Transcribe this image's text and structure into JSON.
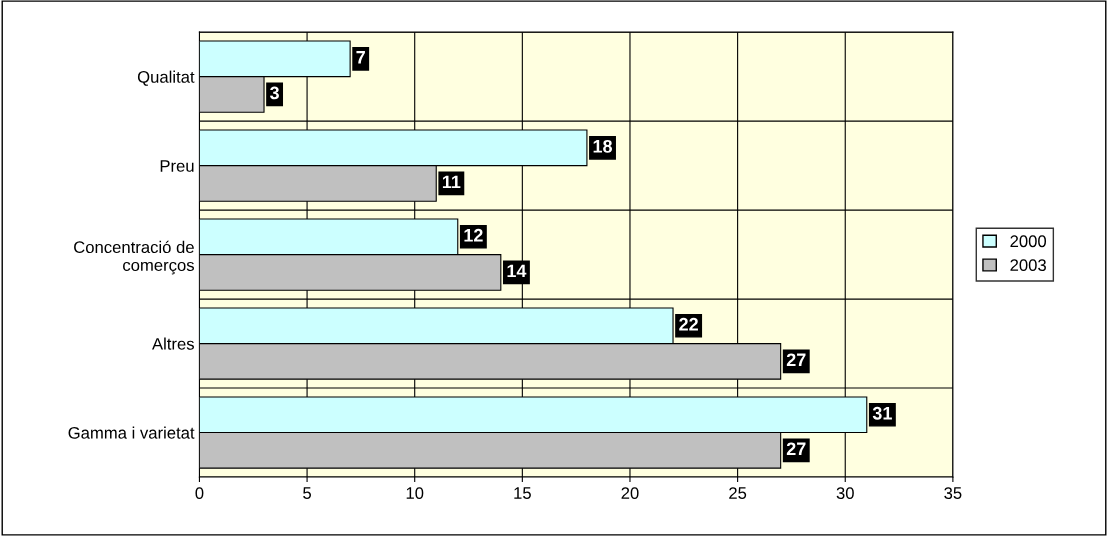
{
  "chart_data": {
    "type": "bar",
    "orientation": "horizontal",
    "categories": [
      "Qualitat",
      "Preu",
      "Concentració de\ncomerços",
      "Altres",
      "Gamma i varietat"
    ],
    "series": [
      {
        "name": "2000",
        "color": "#ccffff",
        "values": [
          7,
          18,
          12,
          22,
          31
        ]
      },
      {
        "name": "2003",
        "color": "#c0c0c0",
        "values": [
          3,
          11,
          14,
          27,
          27
        ]
      }
    ],
    "xlim": [
      0,
      35
    ],
    "xticks": [
      0,
      5,
      10,
      15,
      20,
      25,
      30,
      35
    ],
    "grid": true,
    "legend": "right",
    "data_labels": true
  }
}
